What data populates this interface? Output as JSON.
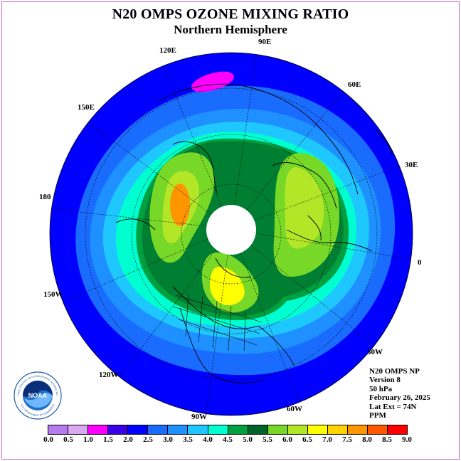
{
  "title": "N20 OMPS OZONE MIXING RATIO",
  "subtitle": "Northern Hemisphere",
  "longitude_labels": [
    "90E",
    "60E",
    "30E",
    "0",
    "30W",
    "60W",
    "90W",
    "120W",
    "150W",
    "180",
    "150E",
    "120E"
  ],
  "info_lines": [
    "N20 OMPS NP",
    "Version 8",
    "50 hPa",
    "February 26, 2025",
    "Lat Ext = 74N",
    "PPM"
  ],
  "logo_text": {
    "center": "NOAA",
    "ring_top": "NATIONAL OCEANIC AND ATMOSPHERIC ADMINISTRATION",
    "ring_bottom": "U.S. DEPARTMENT OF COMMERCE"
  },
  "colorbar": {
    "ticks": [
      "0.0",
      "0.5",
      "1.0",
      "1.5",
      "2.0",
      "2.5",
      "3.0",
      "3.5",
      "4.0",
      "4.5",
      "5.0",
      "5.5",
      "6.0",
      "6.5",
      "7.0",
      "7.5",
      "8.0",
      "8.5",
      "9.0"
    ],
    "colors": [
      "#b57cf0",
      "#d9a8f0",
      "#ff00ff",
      "#3a00e8",
      "#0000ff",
      "#1a6cff",
      "#1e90ff",
      "#1ec8ff",
      "#00ffd0",
      "#00a040",
      "#006428",
      "#78d828",
      "#b4e628",
      "#ffff00",
      "#ffd200",
      "#ff9600",
      "#ff5a00",
      "#ff0000",
      "#8b5a2b"
    ]
  },
  "map": {
    "projection": "north polar stereographic",
    "colors": {
      "ocean_bg": "#0000ff",
      "ring_blue": "#1a6cff",
      "ring_lightblue": "#1e90ff",
      "ring_cyan": "#1ec8ff",
      "ring_aqua": "#00ffd0",
      "green_dark": "#006428",
      "green": "#00a040",
      "lime": "#78d828",
      "yellowgreen": "#b4e628",
      "yellow": "#ffff00",
      "gold": "#ffd200",
      "orange": "#ff9600",
      "magenta": "#ff00ff",
      "polar_night": "#ffffff",
      "land_outline": "#000000"
    }
  }
}
